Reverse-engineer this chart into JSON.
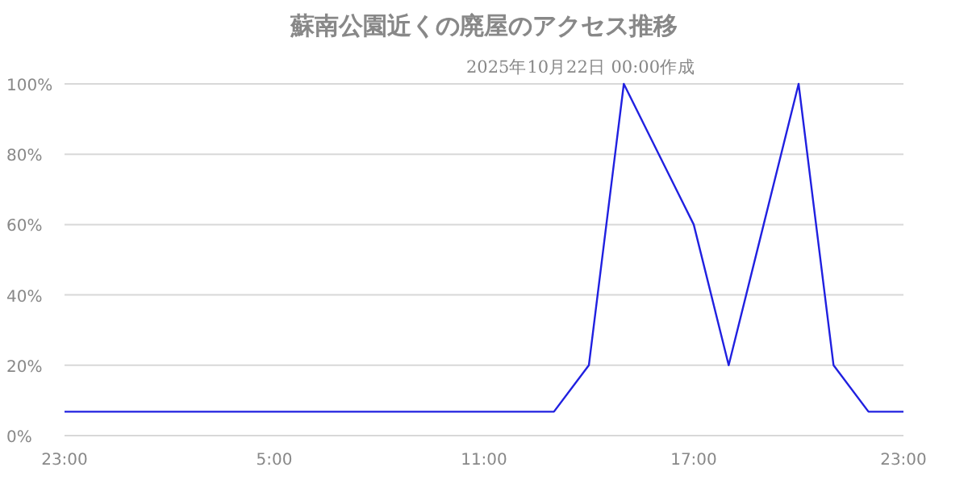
{
  "chart_data": {
    "type": "line",
    "title": "蘇南公園近くの廃屋のアクセス推移",
    "annotations": [
      "2025年10月22日 00:00作成"
    ],
    "categories": [
      "23:00",
      null,
      null,
      null,
      null,
      null,
      "5:00",
      null,
      null,
      null,
      null,
      null,
      "11:00",
      null,
      null,
      null,
      null,
      null,
      "17:00",
      null,
      null,
      null,
      null,
      null,
      "23:00"
    ],
    "series": [
      {
        "color": "#2020e0",
        "values": [
          6.8,
          6.8,
          6.8,
          6.8,
          6.8,
          6.8,
          6.8,
          6.8,
          6.8,
          6.8,
          6.8,
          6.8,
          6.8,
          6.8,
          6.8,
          20,
          100,
          80,
          60,
          20,
          60,
          100,
          20,
          6.8,
          6.8
        ]
      }
    ],
    "ylim": [
      0,
      100
    ],
    "yticks": [
      {
        "value": 0,
        "label": "0%"
      },
      {
        "value": 20,
        "label": "20%"
      },
      {
        "value": 40,
        "label": "40%"
      },
      {
        "value": 60,
        "label": "60%"
      },
      {
        "value": 80,
        "label": "80%"
      },
      {
        "value": 100,
        "label": "100%"
      }
    ],
    "grid": "y",
    "marker": "none",
    "line_style": "solid"
  }
}
